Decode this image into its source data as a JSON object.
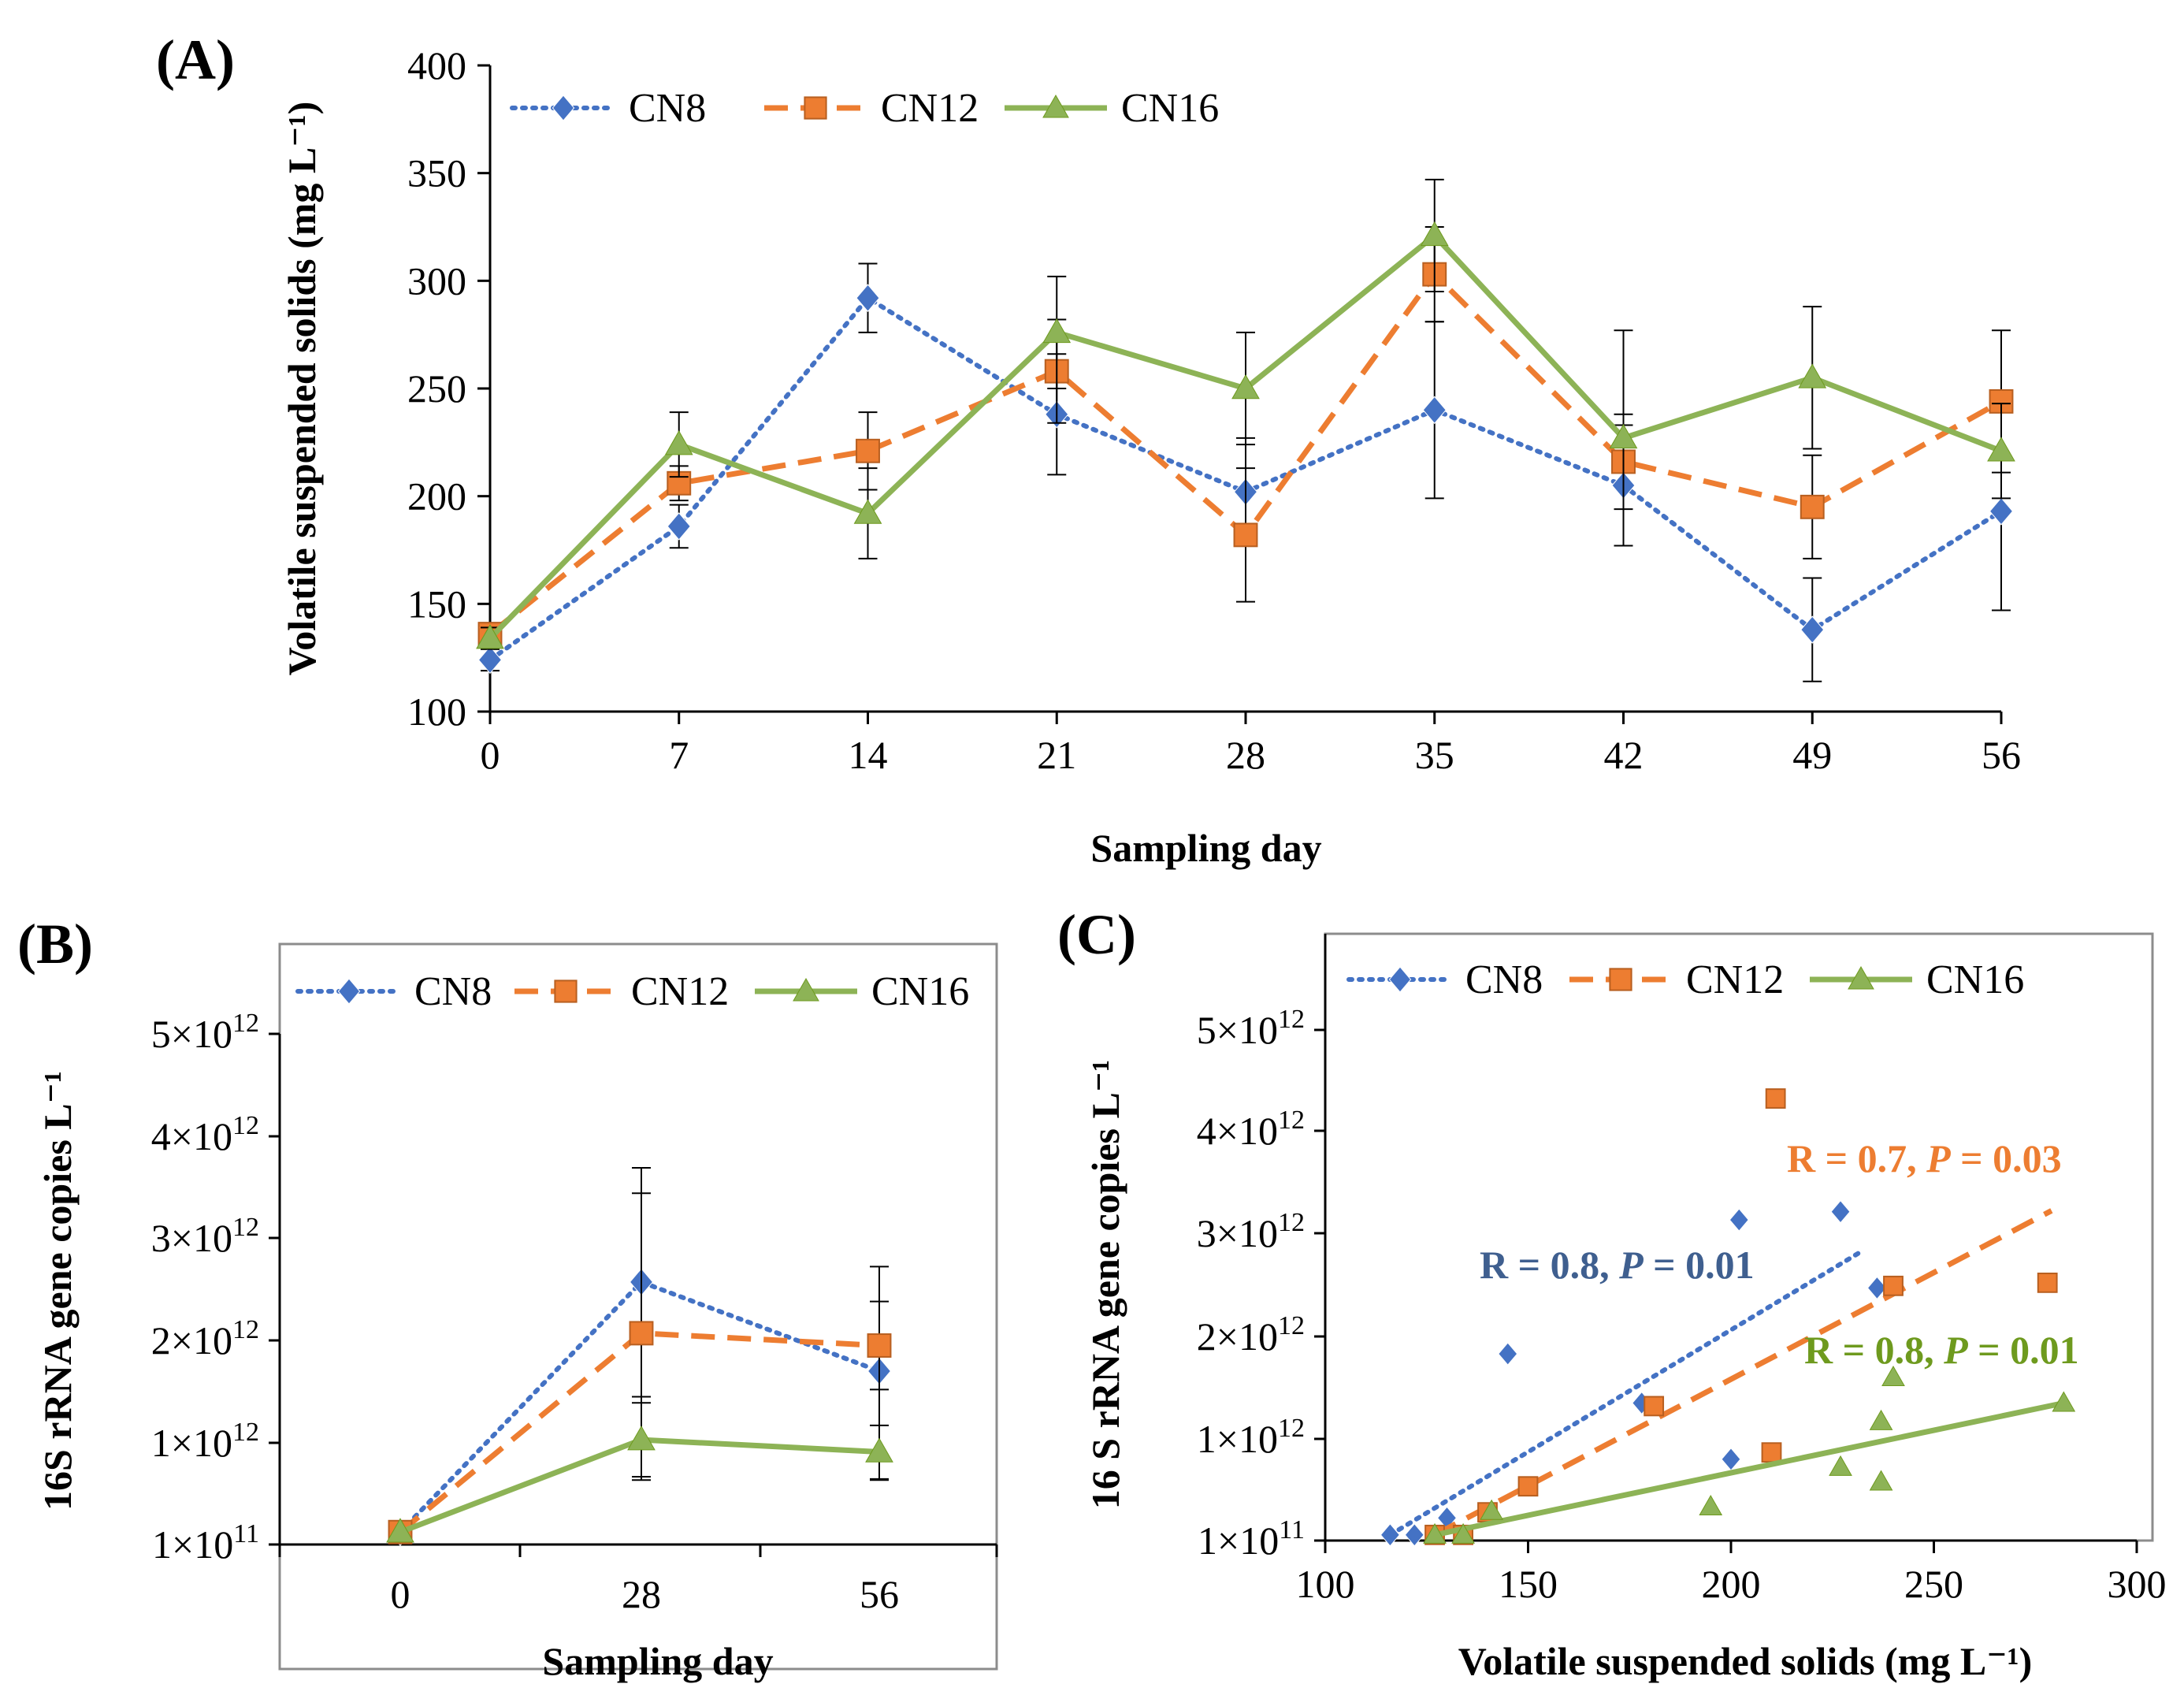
{
  "colors": {
    "CN8": "#4472C4",
    "CN12": "#ED7D31",
    "CN16": "#8DB356",
    "annot_CN8": "#3F5F8F",
    "annot_CN12": "#ED7D31",
    "annot_CN16": "#6E9A1E",
    "axis": "#000000",
    "frame": "#8C8C8C"
  },
  "chart_data": [
    {
      "id": "A",
      "panel_label": "(A)",
      "type": "line",
      "title": "",
      "xlabel": "Sampling  day",
      "ylabel": "Volatile suspended solids (mg L⁻¹)",
      "xlim": [
        0,
        56
      ],
      "ylim": [
        100,
        400
      ],
      "x_ticks": [
        0,
        7,
        14,
        21,
        28,
        35,
        42,
        49,
        56
      ],
      "y_ticks": [
        100,
        150,
        200,
        250,
        300,
        350,
        400
      ],
      "legend": [
        "CN8",
        "CN12",
        "CN16"
      ],
      "series": [
        {
          "name": "CN8",
          "marker": "diamond",
          "line": "dotted",
          "x": [
            0,
            7,
            14,
            21,
            28,
            35,
            42,
            49,
            56
          ],
          "values": [
            124,
            186,
            292,
            238,
            202,
            240,
            205,
            138,
            193
          ],
          "err": [
            5,
            10,
            16,
            28,
            25,
            41,
            28,
            24,
            46
          ]
        },
        {
          "name": "CN12",
          "marker": "square",
          "line": "dashed",
          "x": [
            0,
            7,
            14,
            21,
            28,
            35,
            42,
            49,
            56
          ],
          "values": [
            136,
            206,
            221,
            258,
            182,
            303,
            216,
            195,
            244
          ],
          "err": [
            5,
            8,
            18,
            24,
            31,
            22,
            22,
            24,
            33
          ]
        },
        {
          "name": "CN16",
          "marker": "triangle",
          "line": "solid",
          "x": [
            0,
            7,
            14,
            21,
            28,
            35,
            42,
            49,
            56
          ],
          "values": [
            134,
            224,
            192,
            276,
            250,
            321,
            227,
            255,
            221
          ],
          "err": [
            5,
            15,
            21,
            26,
            26,
            26,
            50,
            33,
            22
          ]
        }
      ]
    },
    {
      "id": "B",
      "panel_label": "(B)",
      "type": "line",
      "title": "",
      "xlabel": "Sampling  day",
      "ylabel": "16S rRNA  gene copies L⁻¹",
      "xlim": [
        0,
        56
      ],
      "ylim": [
        100000000000.0,
        5000000000000.0
      ],
      "x_ticks": [
        0,
        28,
        56
      ],
      "y_ticks": [
        100000000000.0,
        1000000000000.0,
        2000000000000.0,
        3000000000000.0,
        4000000000000.0,
        5000000000000.0
      ],
      "y_tick_labels": [
        "1×10",
        "1×10",
        "2×10",
        "3×10",
        "4×10",
        "5×10"
      ],
      "y_tick_exponents": [
        "11",
        "12",
        "12",
        "12",
        "12",
        "12"
      ],
      "legend": [
        "CN8",
        "CN12",
        "CN16"
      ],
      "series": [
        {
          "name": "CN8",
          "marker": "diamond",
          "line": "dotted",
          "x": [
            0,
            28,
            56
          ],
          "values": [
            210000000000.0,
            2570000000000.0,
            1700000000000.0
          ],
          "err": [
            0,
            1120000000000.0,
            1020000000000.0
          ]
        },
        {
          "name": "CN12",
          "marker": "square",
          "line": "dashed",
          "x": [
            0,
            28,
            56
          ],
          "values": [
            210000000000.0,
            2070000000000.0,
            1950000000000.0
          ],
          "err": [
            0,
            1370000000000.0,
            430000000000.0
          ]
        },
        {
          "name": "CN16",
          "marker": "triangle",
          "line": "solid",
          "x": [
            0,
            28,
            56
          ],
          "values": [
            210000000000.0,
            1030000000000.0,
            920000000000.0
          ],
          "err": [
            0,
            360000000000.0,
            250000000000.0
          ]
        }
      ]
    },
    {
      "id": "C",
      "panel_label": "(C)",
      "type": "scatter",
      "title": "",
      "xlabel": "Volatile suspended solids (mg L⁻¹)",
      "ylabel": "16 S rRNA  gene copies L⁻¹",
      "xlim": [
        100,
        300
      ],
      "ylim": [
        100000000000.0,
        5000000000000.0
      ],
      "x_ticks": [
        100,
        150,
        200,
        250,
        300
      ],
      "y_ticks": [
        100000000000.0,
        1000000000000.0,
        2000000000000.0,
        3000000000000.0,
        4000000000000.0,
        5000000000000.0
      ],
      "y_tick_labels": [
        "1×10",
        "1×10",
        "2×10",
        "3×10",
        "4×10",
        "5×10"
      ],
      "y_tick_exponents": [
        "11",
        "12",
        "12",
        "12",
        "12",
        "12"
      ],
      "legend": [
        "CN8",
        "CN12",
        "CN16"
      ],
      "series": [
        {
          "name": "CN8",
          "marker": "diamond",
          "x": [
            116,
            122,
            130,
            145,
            178,
            200,
            202,
            227,
            236
          ],
          "values": [
            150000000000.0,
            150000000000.0,
            300000000000.0,
            1830000000000.0,
            1350000000000.0,
            820000000000.0,
            3130000000000.0,
            3210000000000.0,
            2470000000000.0
          ],
          "trend": {
            "line": "dotted",
            "x": [
              116,
              232
            ],
            "values": [
              150000000000.0,
              2820000000000.0
            ]
          }
        },
        {
          "name": "CN12",
          "marker": "square",
          "x": [
            127,
            134,
            140,
            150,
            181,
            210,
            211,
            240,
            278
          ],
          "values": [
            150000000000.0,
            150000000000.0,
            350000000000.0,
            580000000000.0,
            1320000000000.0,
            880000000000.0,
            4320000000000.0,
            2490000000000.0,
            2520000000000.0
          ],
          "trend": {
            "line": "dashed",
            "x": [
              127,
              279
            ],
            "values": [
              150000000000.0,
              3220000000000.0
            ]
          }
        },
        {
          "name": "CN16",
          "marker": "triangle",
          "x": [
            127,
            134,
            141,
            195,
            227,
            237,
            237,
            240,
            282
          ],
          "values": [
            150000000000.0,
            150000000000.0,
            360000000000.0,
            400000000000.0,
            750000000000.0,
            1170000000000.0,
            620000000000.0,
            1600000000000.0,
            1350000000000.0
          ],
          "trend": {
            "line": "solid",
            "x": [
              127,
              282
            ],
            "values": [
              150000000000.0,
              1350000000000.0
            ]
          }
        }
      ],
      "annotations": [
        {
          "series": "CN12",
          "text_r": "R = 0.7, ",
          "text_p": "P",
          "text_v": " = 0.03"
        },
        {
          "series": "CN8",
          "text_r": "R = 0.8, ",
          "text_p": "P",
          "text_v": " = 0.01"
        },
        {
          "series": "CN16",
          "text_r": "R = 0.8, ",
          "text_p": "P",
          "text_v": " = 0.01"
        }
      ]
    }
  ]
}
